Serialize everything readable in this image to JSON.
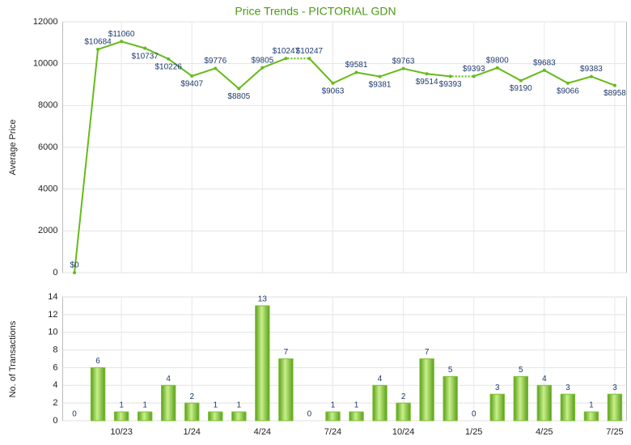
{
  "chart_data": [
    {
      "type": "line",
      "title": "Price Trends - PICTORIAL GDN",
      "y_label": "Average Price",
      "values": [
        0,
        10684,
        11060,
        10737,
        10226,
        9407,
        9776,
        8805,
        9805,
        10247,
        10247,
        9063,
        9581,
        9381,
        9763,
        9514,
        9393,
        9393,
        9800,
        9190,
        9683,
        9066,
        9383,
        8958
      ],
      "value_labels": [
        "$0",
        "$10684",
        "$11060",
        "$10737",
        "$10226",
        "$9407",
        "$9776",
        "$8805",
        "$9805",
        "$10247",
        "$10247",
        "$9063",
        "$9581",
        "$9381",
        "$9763",
        "$9514",
        "$9393",
        "$9393",
        "$9800",
        "$9190",
        "$9683",
        "$9066",
        "$9383",
        "$8958"
      ],
      "color": "#66bb1a",
      "ylim": [
        0,
        12000
      ],
      "yticks": [
        0,
        2000,
        4000,
        6000,
        8000,
        10000,
        12000
      ],
      "grid": true
    },
    {
      "type": "bar",
      "y_label": "No. of Transactions",
      "categories": [
        null,
        null,
        "10/23",
        null,
        null,
        "1/24",
        null,
        null,
        "4/24",
        null,
        null,
        "7/24",
        null,
        null,
        "10/24",
        null,
        null,
        "1/25",
        null,
        null,
        "4/25",
        null,
        null,
        "7/25"
      ],
      "values": [
        0,
        6,
        1,
        1,
        4,
        2,
        1,
        1,
        13,
        7,
        0,
        1,
        1,
        4,
        2,
        7,
        5,
        0,
        3,
        5,
        4,
        3,
        1,
        3
      ],
      "color": "#7cc234",
      "ylim": [
        0,
        14
      ],
      "yticks": [
        0,
        2,
        4,
        6,
        8,
        10,
        12,
        14
      ],
      "grid": true
    }
  ]
}
